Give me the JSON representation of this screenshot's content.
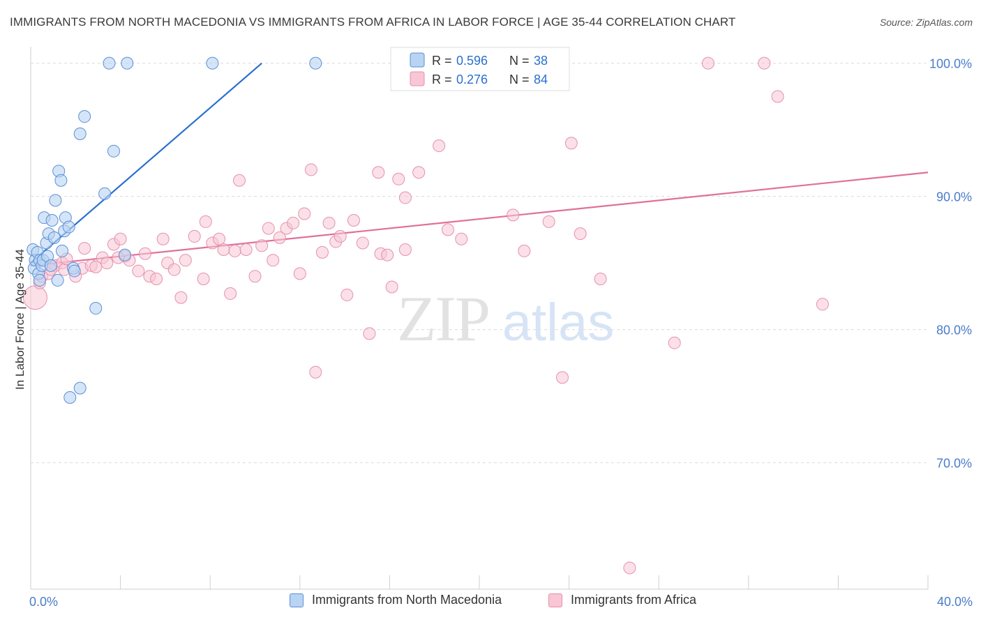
{
  "header": {
    "title": "IMMIGRANTS FROM NORTH MACEDONIA VS IMMIGRANTS FROM AFRICA IN LABOR FORCE | AGE 35-44 CORRELATION CHART",
    "source": "Source: ZipAtlas.com"
  },
  "watermark": {
    "zip": "ZIP",
    "atlas": "atlas"
  },
  "colors": {
    "blue_fill": "#b9d3f3",
    "blue_stroke": "#5b8fd6",
    "blue_line": "#2a6fcf",
    "pink_fill": "#f8c6d5",
    "pink_stroke": "#e590ad",
    "pink_line": "#e0709a",
    "tick_label": "#4a7cc9",
    "grid": "#dcdcdc"
  },
  "legend": {
    "rows": [
      {
        "r_label": "R =",
        "r_value": "0.596",
        "n_label": "N =",
        "n_value": "38"
      },
      {
        "r_label": "R =",
        "r_value": "0.276",
        "n_label": "N =",
        "n_value": "84"
      }
    ]
  },
  "chart_data": {
    "type": "scatter",
    "title": "IMMIGRANTS FROM NORTH MACEDONIA VS IMMIGRANTS FROM AFRICA IN LABOR FORCE | AGE 35-44 CORRELATION CHART",
    "xlabel": "",
    "ylabel": "In Labor Force | Age 35-44",
    "xlim": [
      0,
      40
    ],
    "ylim": [
      60.5,
      101.5
    ],
    "x_tick_labels": [
      "0.0%",
      "40.0%"
    ],
    "y_ticks": [
      70,
      80,
      90,
      100
    ],
    "y_tick_labels": [
      "70.0%",
      "80.0%",
      "90.0%",
      "100.0%"
    ],
    "grid": true,
    "legend_position": "top-center",
    "series": [
      {
        "name": "Immigrants from North Macedonia",
        "r": 0.596,
        "n": 38,
        "trendline": {
          "x": [
            0.0,
            10.3
          ],
          "y": [
            85.0,
            100.0
          ]
        },
        "points": [
          [
            0.1,
            86.0
          ],
          [
            0.15,
            84.6
          ],
          [
            0.2,
            85.2
          ],
          [
            0.3,
            85.8
          ],
          [
            0.35,
            84.2
          ],
          [
            0.4,
            85.2
          ],
          [
            0.4,
            83.7
          ],
          [
            0.5,
            84.8
          ],
          [
            0.55,
            85.2
          ],
          [
            0.6,
            88.4
          ],
          [
            0.7,
            86.5
          ],
          [
            0.75,
            85.5
          ],
          [
            0.8,
            87.2
          ],
          [
            0.9,
            84.8
          ],
          [
            0.95,
            88.2
          ],
          [
            1.05,
            86.9
          ],
          [
            1.1,
            89.7
          ],
          [
            1.2,
            83.7
          ],
          [
            1.25,
            91.9
          ],
          [
            1.35,
            91.2
          ],
          [
            1.4,
            85.9
          ],
          [
            1.5,
            87.4
          ],
          [
            1.55,
            88.4
          ],
          [
            1.7,
            87.7
          ],
          [
            1.9,
            84.6
          ],
          [
            1.95,
            84.4
          ],
          [
            2.2,
            94.7
          ],
          [
            2.4,
            96.0
          ],
          [
            2.9,
            81.6
          ],
          [
            3.3,
            90.2
          ],
          [
            3.7,
            93.4
          ],
          [
            3.5,
            100.0
          ],
          [
            4.3,
            100.0
          ],
          [
            8.1,
            100.0
          ],
          [
            12.7,
            100.0
          ],
          [
            4.2,
            85.6
          ],
          [
            1.75,
            74.9
          ],
          [
            2.2,
            75.6
          ]
        ]
      },
      {
        "name": "Immigrants from Africa",
        "r": 0.276,
        "n": 84,
        "trendline": {
          "x": [
            0.0,
            40.0
          ],
          "y": [
            84.8,
            91.8
          ]
        },
        "points": [
          [
            0.2,
            82.4
          ],
          [
            0.4,
            83.5
          ],
          [
            0.5,
            84.0
          ],
          [
            0.8,
            84.2
          ],
          [
            1.1,
            84.8
          ],
          [
            1.4,
            85.0
          ],
          [
            1.5,
            84.5
          ],
          [
            1.6,
            85.3
          ],
          [
            2.0,
            84.0
          ],
          [
            2.3,
            84.6
          ],
          [
            2.4,
            86.1
          ],
          [
            2.7,
            84.8
          ],
          [
            2.9,
            84.7
          ],
          [
            3.2,
            85.4
          ],
          [
            3.4,
            85.0
          ],
          [
            3.7,
            86.4
          ],
          [
            4.0,
            86.8
          ],
          [
            4.2,
            85.5
          ],
          [
            4.4,
            85.2
          ],
          [
            4.8,
            84.4
          ],
          [
            5.1,
            85.7
          ],
          [
            5.3,
            84.0
          ],
          [
            5.6,
            83.8
          ],
          [
            5.9,
            86.8
          ],
          [
            6.1,
            85.0
          ],
          [
            6.4,
            84.5
          ],
          [
            6.7,
            82.4
          ],
          [
            6.9,
            85.2
          ],
          [
            7.3,
            87.0
          ],
          [
            7.7,
            83.8
          ],
          [
            7.8,
            88.1
          ],
          [
            8.1,
            86.5
          ],
          [
            8.4,
            86.8
          ],
          [
            8.6,
            86.0
          ],
          [
            8.9,
            82.7
          ],
          [
            9.1,
            85.9
          ],
          [
            9.3,
            91.2
          ],
          [
            9.6,
            86.0
          ],
          [
            10.0,
            84.0
          ],
          [
            10.3,
            86.3
          ],
          [
            10.6,
            87.6
          ],
          [
            10.8,
            85.2
          ],
          [
            11.1,
            86.9
          ],
          [
            11.4,
            87.6
          ],
          [
            11.7,
            88.0
          ],
          [
            12.0,
            84.2
          ],
          [
            12.2,
            88.7
          ],
          [
            12.5,
            92.0
          ],
          [
            12.7,
            76.8
          ],
          [
            13.0,
            85.8
          ],
          [
            13.3,
            88.0
          ],
          [
            13.6,
            86.6
          ],
          [
            13.8,
            87.0
          ],
          [
            14.1,
            82.6
          ],
          [
            14.4,
            88.2
          ],
          [
            14.8,
            86.5
          ],
          [
            15.1,
            79.7
          ],
          [
            15.5,
            91.8
          ],
          [
            15.6,
            85.7
          ],
          [
            15.9,
            85.6
          ],
          [
            16.1,
            83.2
          ],
          [
            16.4,
            91.3
          ],
          [
            16.7,
            89.9
          ],
          [
            16.7,
            86.0
          ],
          [
            17.3,
            91.8
          ],
          [
            18.2,
            93.8
          ],
          [
            18.6,
            87.5
          ],
          [
            19.2,
            86.8
          ],
          [
            20.3,
            100.0
          ],
          [
            21.5,
            88.6
          ],
          [
            22.0,
            85.9
          ],
          [
            23.1,
            88.1
          ],
          [
            23.7,
            76.4
          ],
          [
            24.1,
            94.0
          ],
          [
            24.5,
            87.2
          ],
          [
            25.4,
            83.8
          ],
          [
            28.7,
            79.0
          ],
          [
            30.2,
            100.0
          ],
          [
            32.7,
            100.0
          ],
          [
            33.3,
            97.5
          ],
          [
            35.3,
            81.9
          ],
          [
            26.7,
            62.1
          ],
          [
            0.9,
            84.5
          ],
          [
            3.9,
            85.4
          ]
        ]
      }
    ]
  },
  "axes": {
    "ylabel": "In Labor Force | Age 35-44",
    "x_min_label": "0.0%",
    "x_max_label": "40.0%"
  },
  "bottom_legend": {
    "items": [
      {
        "label": "Immigrants from North Macedonia"
      },
      {
        "label": "Immigrants from Africa"
      }
    ]
  }
}
